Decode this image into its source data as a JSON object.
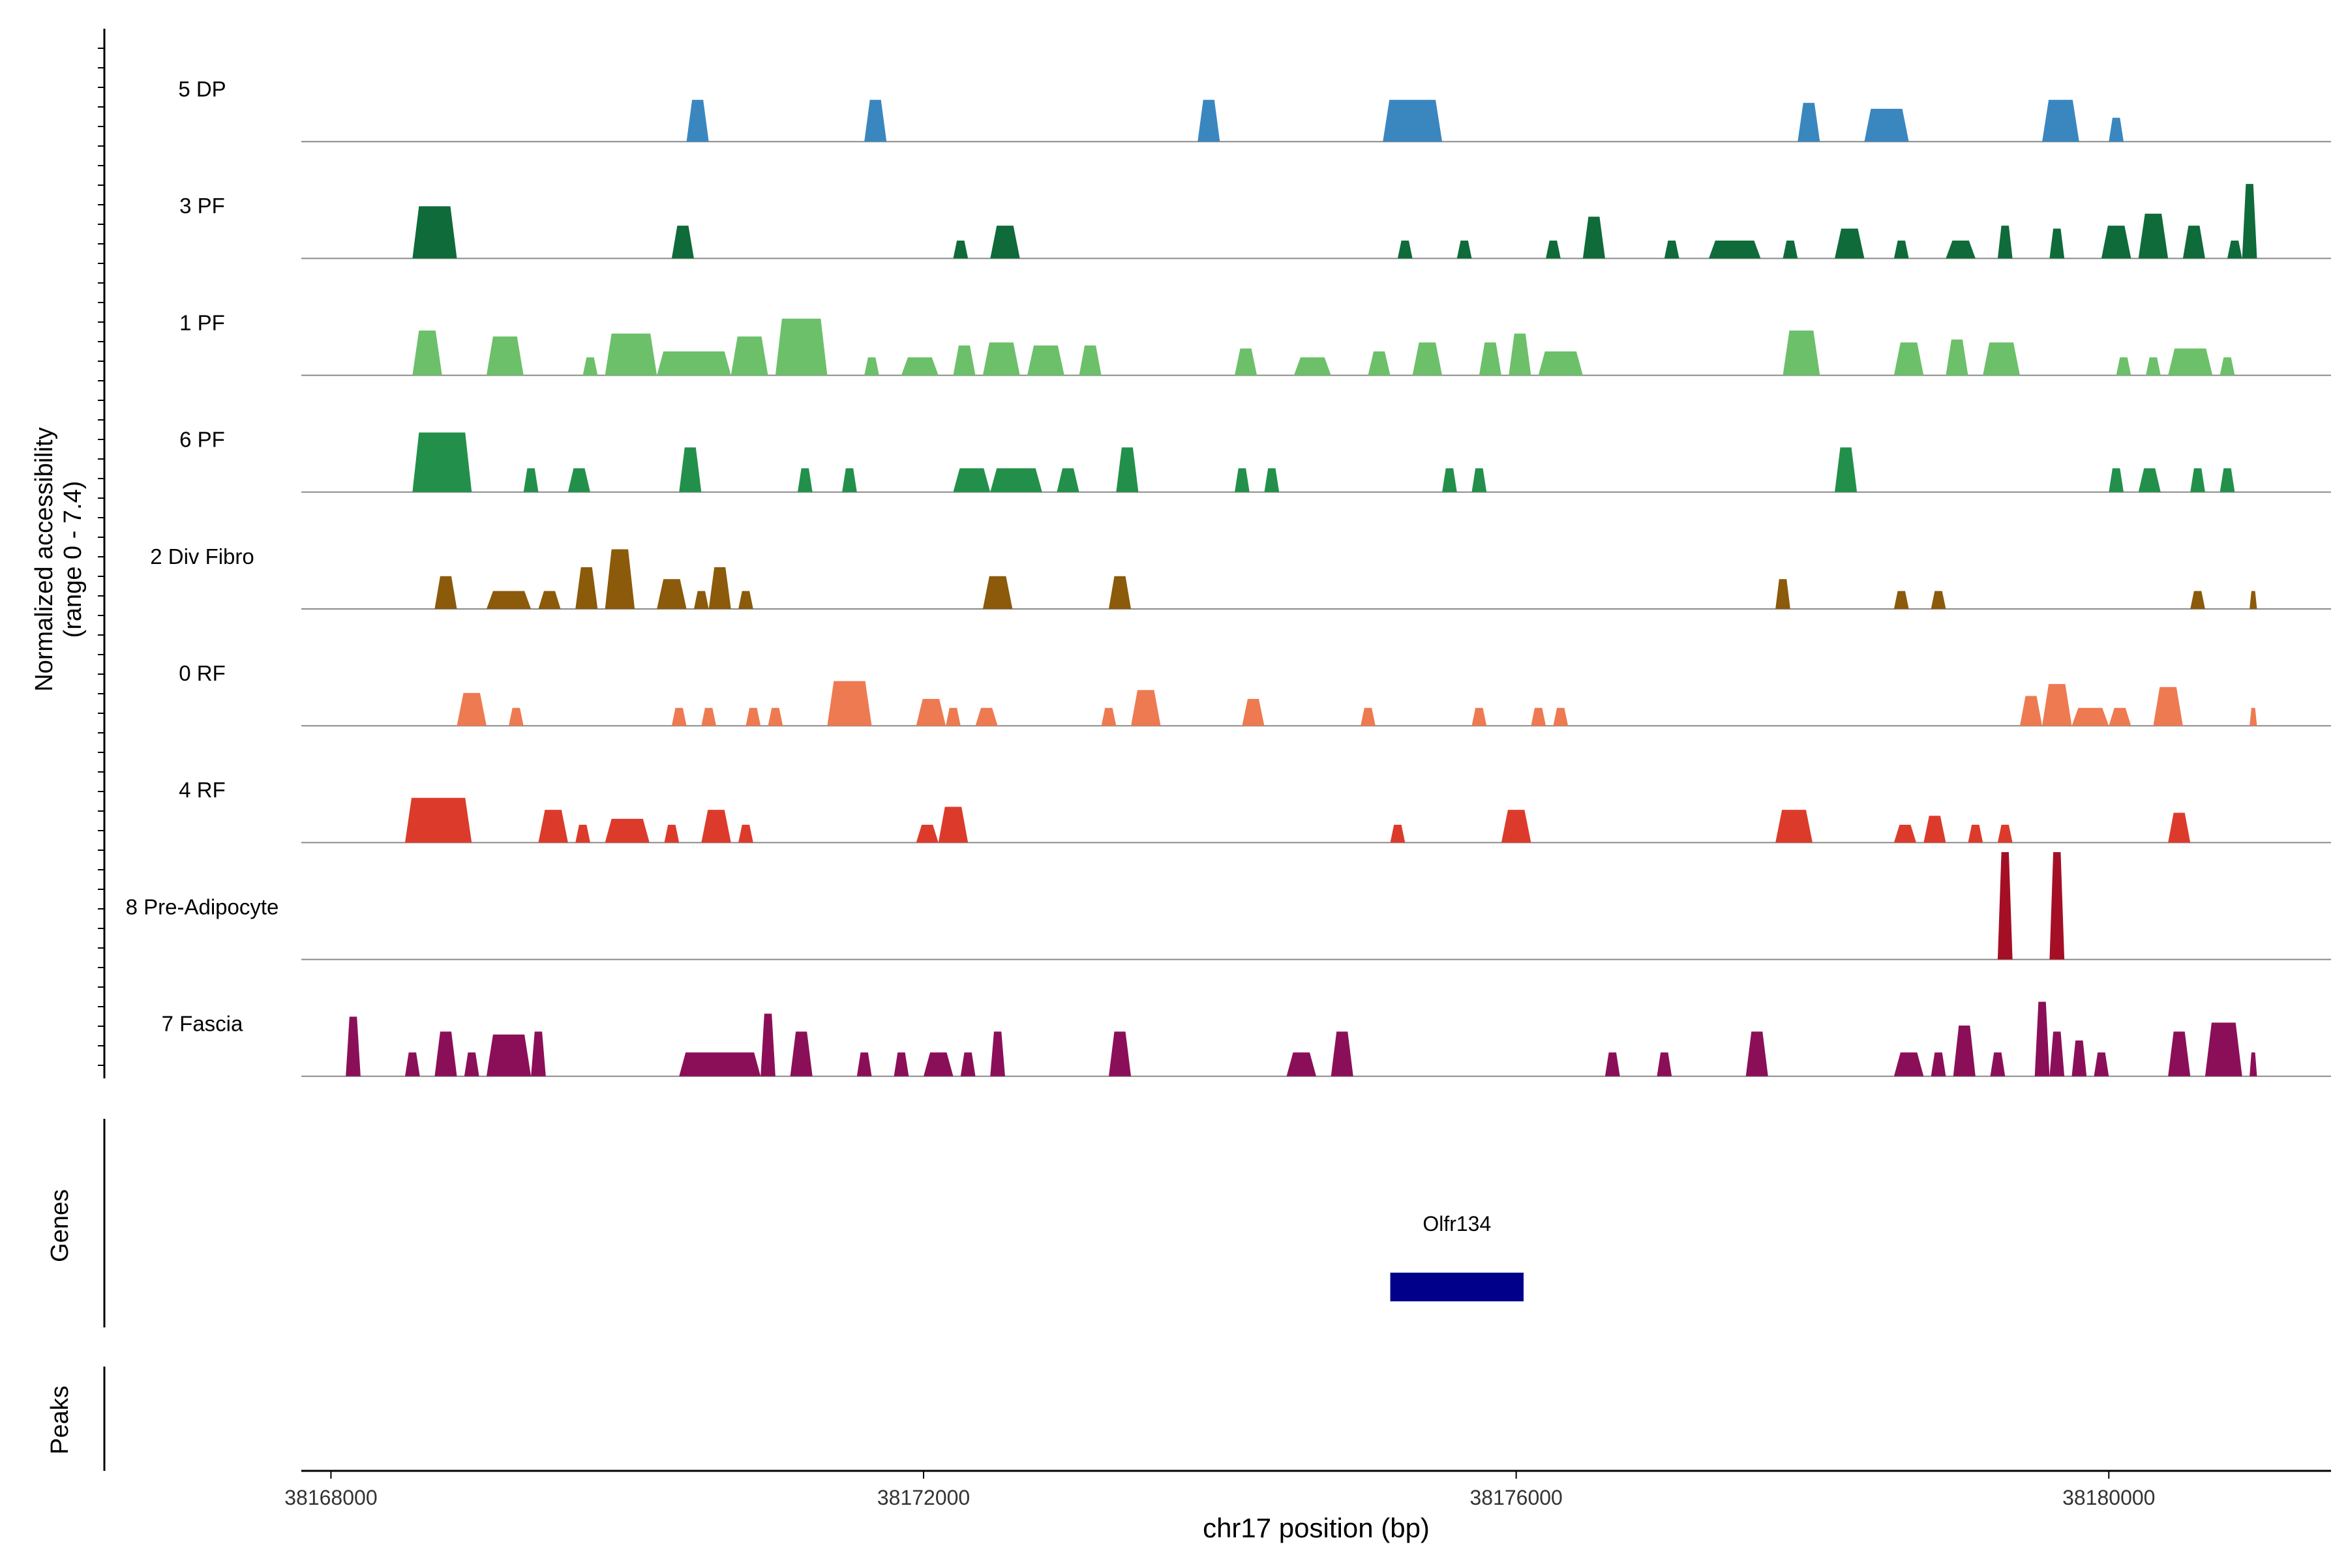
{
  "chart_data": {
    "type": "area",
    "title": "",
    "ylabel_line1": "Normalized accessibility",
    "ylabel_line2": "(range 0 - 7.4)",
    "xlabel": "chr17 position (bp)",
    "y_range": [
      0,
      7.4
    ],
    "x_range": [
      38167800,
      38181500
    ],
    "x_ticks": [
      38168000,
      38172000,
      38176000,
      38180000
    ],
    "x_tick_labels": [
      "38168000",
      "38172000",
      "38176000",
      "38180000"
    ],
    "panel_labels": {
      "genes": "Genes",
      "peaks": "Peaks"
    },
    "tracks": [
      {
        "name": "5 DP",
        "color": "#3a87c0",
        "peaks": [
          [
            38170400,
            38170550,
            2.8
          ],
          [
            38171600,
            38171750,
            2.8
          ],
          [
            38173850,
            38174000,
            2.8
          ],
          [
            38175100,
            38175500,
            2.8
          ],
          [
            38177900,
            38178050,
            2.6
          ],
          [
            38178350,
            38178650,
            2.2
          ],
          [
            38179550,
            38179800,
            2.8
          ],
          [
            38180000,
            38180100,
            1.6
          ]
        ]
      },
      {
        "name": "3 PF",
        "color": "#0f6b3a",
        "peaks": [
          [
            38168550,
            38168850,
            3.5
          ],
          [
            38170300,
            38170450,
            2.2
          ],
          [
            38172200,
            38172300,
            1.2
          ],
          [
            38172450,
            38172650,
            2.2
          ],
          [
            38175200,
            38175300,
            1.2
          ],
          [
            38175600,
            38175700,
            1.2
          ],
          [
            38176200,
            38176300,
            1.2
          ],
          [
            38176450,
            38176600,
            2.8
          ],
          [
            38177000,
            38177100,
            1.2
          ],
          [
            38177300,
            38177650,
            1.2
          ],
          [
            38177800,
            38177900,
            1.2
          ],
          [
            38178150,
            38178350,
            2.0
          ],
          [
            38178550,
            38178650,
            1.2
          ],
          [
            38178900,
            38179100,
            1.2
          ],
          [
            38179250,
            38179350,
            2.2
          ],
          [
            38179600,
            38179700,
            2.0
          ],
          [
            38179950,
            38180150,
            2.2
          ],
          [
            38180200,
            38180400,
            3.0
          ],
          [
            38180500,
            38180650,
            2.2
          ],
          [
            38180800,
            38180900,
            1.2
          ],
          [
            38180900,
            38181000,
            5.0
          ]
        ]
      },
      {
        "name": "1 PF",
        "color": "#6cc06a",
        "peaks": [
          [
            38168550,
            38168750,
            3.0
          ],
          [
            38169050,
            38169300,
            2.6
          ],
          [
            38169700,
            38169800,
            1.2
          ],
          [
            38169850,
            38170200,
            2.8
          ],
          [
            38170200,
            38170700,
            1.6
          ],
          [
            38170700,
            38170950,
            2.6
          ],
          [
            38171000,
            38171350,
            3.8
          ],
          [
            38171600,
            38171700,
            1.2
          ],
          [
            38171850,
            38172100,
            1.2
          ],
          [
            38172200,
            38172350,
            2.0
          ],
          [
            38172400,
            38172650,
            2.2
          ],
          [
            38172700,
            38172950,
            2.0
          ],
          [
            38173050,
            38173200,
            2.0
          ],
          [
            38174100,
            38174250,
            1.8
          ],
          [
            38174500,
            38174750,
            1.2
          ],
          [
            38175000,
            38175150,
            1.6
          ],
          [
            38175300,
            38175500,
            2.2
          ],
          [
            38175750,
            38175900,
            2.2
          ],
          [
            38175950,
            38176100,
            2.8
          ],
          [
            38176150,
            38176450,
            1.6
          ],
          [
            38177800,
            38178050,
            3.0
          ],
          [
            38178550,
            38178750,
            2.2
          ],
          [
            38178900,
            38179050,
            2.4
          ],
          [
            38179150,
            38179400,
            2.2
          ],
          [
            38180050,
            38180150,
            1.2
          ],
          [
            38180250,
            38180350,
            1.2
          ],
          [
            38180400,
            38180700,
            1.8
          ],
          [
            38180750,
            38180850,
            1.2
          ]
        ]
      },
      {
        "name": "6 PF",
        "color": "#22904a",
        "peaks": [
          [
            38168550,
            38168950,
            4.0
          ],
          [
            38169300,
            38169400,
            1.6
          ],
          [
            38169600,
            38169750,
            1.6
          ],
          [
            38170350,
            38170500,
            3.0
          ],
          [
            38171150,
            38171250,
            1.6
          ],
          [
            38171450,
            38171550,
            1.6
          ],
          [
            38172200,
            38172450,
            1.6
          ],
          [
            38172450,
            38172800,
            1.6
          ],
          [
            38172900,
            38173050,
            1.6
          ],
          [
            38173300,
            38173450,
            3.0
          ],
          [
            38174100,
            38174200,
            1.6
          ],
          [
            38174300,
            38174400,
            1.6
          ],
          [
            38175500,
            38175600,
            1.6
          ],
          [
            38175700,
            38175800,
            1.6
          ],
          [
            38178150,
            38178300,
            3.0
          ],
          [
            38180000,
            38180100,
            1.6
          ],
          [
            38180200,
            38180350,
            1.6
          ],
          [
            38180550,
            38180650,
            1.6
          ],
          [
            38180750,
            38180850,
            1.6
          ]
        ]
      },
      {
        "name": "2 Div Fibro",
        "color": "#8b5a0a",
        "peaks": [
          [
            38168700,
            38168850,
            2.2
          ],
          [
            38169050,
            38169350,
            1.2
          ],
          [
            38169400,
            38169550,
            1.2
          ],
          [
            38169650,
            38169800,
            2.8
          ],
          [
            38169850,
            38170050,
            4.0
          ],
          [
            38170200,
            38170400,
            2.0
          ],
          [
            38170450,
            38170550,
            1.2
          ],
          [
            38170550,
            38170700,
            2.8
          ],
          [
            38170750,
            38170850,
            1.2
          ],
          [
            38172400,
            38172600,
            2.2
          ],
          [
            38173250,
            38173400,
            2.2
          ],
          [
            38177750,
            38177850,
            2.0
          ],
          [
            38178550,
            38178650,
            1.2
          ],
          [
            38178800,
            38178900,
            1.2
          ],
          [
            38180550,
            38180650,
            1.2
          ],
          [
            38180950,
            38181000,
            1.2
          ]
        ]
      },
      {
        "name": "0 RF",
        "color": "#ee7a52",
        "peaks": [
          [
            38168850,
            38169050,
            2.2
          ],
          [
            38169200,
            38169300,
            1.2
          ],
          [
            38170300,
            38170400,
            1.2
          ],
          [
            38170500,
            38170600,
            1.2
          ],
          [
            38170800,
            38170900,
            1.2
          ],
          [
            38170950,
            38171050,
            1.2
          ],
          [
            38171350,
            38171650,
            3.0
          ],
          [
            38171950,
            38172150,
            1.8
          ],
          [
            38172150,
            38172250,
            1.2
          ],
          [
            38172350,
            38172500,
            1.2
          ],
          [
            38173200,
            38173300,
            1.2
          ],
          [
            38173400,
            38173600,
            2.4
          ],
          [
            38174150,
            38174300,
            1.8
          ],
          [
            38174950,
            38175050,
            1.2
          ],
          [
            38175700,
            38175800,
            1.2
          ],
          [
            38176100,
            38176200,
            1.2
          ],
          [
            38176250,
            38176350,
            1.2
          ],
          [
            38179400,
            38179550,
            2.0
          ],
          [
            38179550,
            38179750,
            2.8
          ],
          [
            38179750,
            38180000,
            1.2
          ],
          [
            38180000,
            38180150,
            1.2
          ],
          [
            38180300,
            38180500,
            2.6
          ],
          [
            38180950,
            38181000,
            1.2
          ]
        ]
      },
      {
        "name": "4 RF",
        "color": "#dc3b2c",
        "peaks": [
          [
            38168500,
            38168950,
            3.0
          ],
          [
            38169400,
            38169600,
            2.2
          ],
          [
            38169650,
            38169750,
            1.2
          ],
          [
            38169850,
            38170150,
            1.6
          ],
          [
            38170250,
            38170350,
            1.2
          ],
          [
            38170500,
            38170700,
            2.2
          ],
          [
            38170750,
            38170850,
            1.2
          ],
          [
            38171950,
            38172100,
            1.2
          ],
          [
            38172100,
            38172300,
            2.4
          ],
          [
            38175150,
            38175250,
            1.2
          ],
          [
            38175900,
            38176100,
            2.2
          ],
          [
            38177750,
            38178000,
            2.2
          ],
          [
            38178550,
            38178700,
            1.2
          ],
          [
            38178750,
            38178900,
            1.8
          ],
          [
            38179050,
            38179150,
            1.2
          ],
          [
            38179250,
            38179350,
            1.2
          ],
          [
            38180400,
            38180550,
            2.0
          ]
        ]
      },
      {
        "name": "8 Pre-Adipocyte",
        "color": "#a50f26",
        "peaks": [
          [
            38179250,
            38179350,
            7.2
          ],
          [
            38179600,
            38179700,
            7.2
          ]
        ]
      },
      {
        "name": "7 Fascia",
        "color": "#8b0f58",
        "peaks": [
          [
            38168100,
            38168200,
            4.0
          ],
          [
            38168500,
            38168600,
            1.6
          ],
          [
            38168700,
            38168850,
            3.0
          ],
          [
            38168900,
            38169000,
            1.6
          ],
          [
            38169050,
            38169350,
            2.8
          ],
          [
            38169350,
            38169450,
            3.0
          ],
          [
            38170350,
            38170900,
            1.6
          ],
          [
            38170900,
            38171000,
            4.2
          ],
          [
            38171100,
            38171250,
            3.0
          ],
          [
            38171550,
            38171650,
            1.6
          ],
          [
            38171800,
            38171900,
            1.6
          ],
          [
            38172000,
            38172200,
            1.6
          ],
          [
            38172250,
            38172350,
            1.6
          ],
          [
            38172450,
            38172550,
            3.0
          ],
          [
            38173250,
            38173400,
            3.0
          ],
          [
            38174450,
            38174650,
            1.6
          ],
          [
            38174750,
            38174900,
            3.0
          ],
          [
            38176600,
            38176700,
            1.6
          ],
          [
            38176950,
            38177050,
            1.6
          ],
          [
            38177550,
            38177700,
            3.0
          ],
          [
            38178550,
            38178750,
            1.6
          ],
          [
            38178800,
            38178900,
            1.6
          ],
          [
            38178950,
            38179100,
            3.4
          ],
          [
            38179200,
            38179300,
            1.6
          ],
          [
            38179500,
            38179600,
            5.0
          ],
          [
            38179600,
            38179700,
            3.0
          ],
          [
            38179750,
            38179850,
            2.4
          ],
          [
            38179900,
            38180000,
            1.6
          ],
          [
            38180400,
            38180550,
            3.0
          ],
          [
            38180650,
            38180900,
            3.6
          ],
          [
            38180950,
            38181000,
            1.6
          ]
        ]
      }
    ],
    "genes": [
      {
        "name": "Olfr134",
        "start": 38175150,
        "end": 38176050,
        "color": "#00008b"
      }
    ]
  }
}
